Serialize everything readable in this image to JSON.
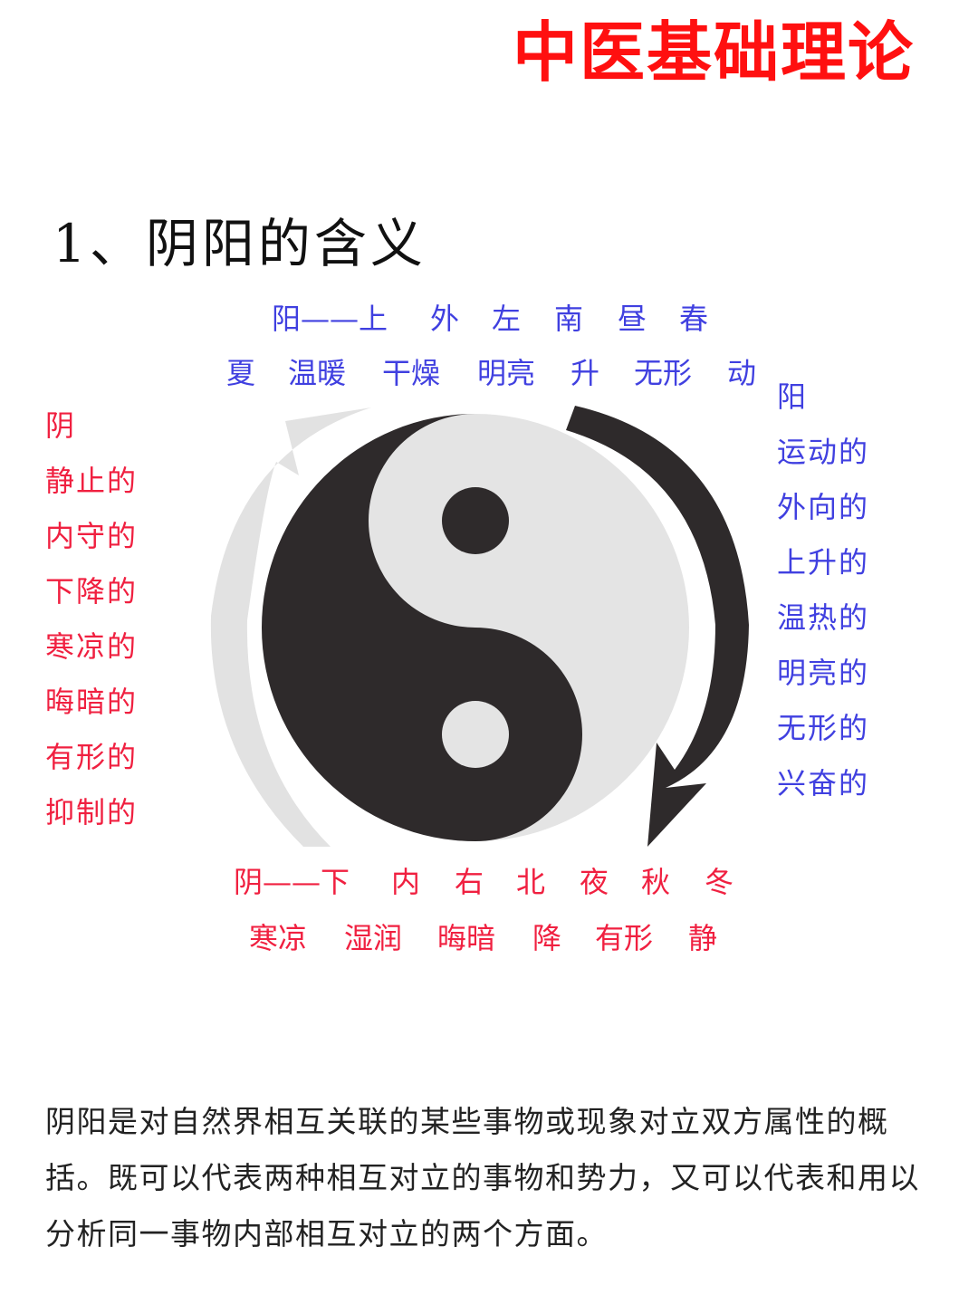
{
  "header": {
    "brand_title": "中医基础理论"
  },
  "section": {
    "title": "1、阴阳的含义"
  },
  "yang_lines": {
    "line1": [
      "阳——上",
      "外",
      "左",
      "南",
      "昼",
      "春"
    ],
    "line2": [
      "夏",
      "温暖",
      "干燥",
      "明亮",
      "升",
      "无形",
      "动"
    ]
  },
  "yin_lines": {
    "line1": [
      "阴——下",
      "内",
      "右",
      "北",
      "夜",
      "秋",
      "冬"
    ],
    "line2": [
      "寒凉",
      "湿润",
      "晦暗",
      "降",
      "有形",
      "静"
    ]
  },
  "yin_column": [
    "阴",
    "静止的",
    "内守的",
    "下降的",
    "寒凉的",
    "晦暗的",
    "有形的",
    "抑制的"
  ],
  "yang_column": [
    "阳",
    "运动的",
    "外向的",
    "上升的",
    "温热的",
    "明亮的",
    "无形的",
    "兴奋的"
  ],
  "body_text": "阴阳是对自然界相互关联的某些事物或现象对立双方属性的概括。既可以代表两种相互对立的事物和势力，又可以代表和用以分析同一事物内部相互对立的两个方面。",
  "colors": {
    "brand": "#ff1010",
    "yang_text": "#4040e0",
    "yin_text": "#f02040",
    "taiji_dark": "#2e2a2b",
    "taiji_light": "#e4e4e4"
  },
  "icons": {
    "diagram": "yin-yang-taiji-icon",
    "arrows": "circular-arrow-icon"
  }
}
